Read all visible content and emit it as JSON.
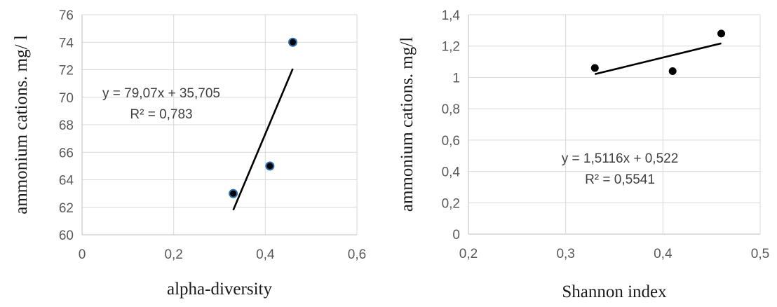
{
  "chart_data": [
    {
      "type": "scatter",
      "xlabel": "alpha-diversity",
      "ylabel": "ammonium cations. mg/ l",
      "xlim": [
        0,
        0.6
      ],
      "ylim": [
        60,
        76
      ],
      "x_ticks": [
        "0",
        "0,2",
        "0,4",
        "0,6"
      ],
      "y_ticks": [
        "60",
        "62",
        "64",
        "66",
        "68",
        "70",
        "72",
        "74",
        "76"
      ],
      "points": [
        {
          "x": 0.33,
          "y": 63
        },
        {
          "x": 0.41,
          "y": 65
        },
        {
          "x": 0.46,
          "y": 74
        }
      ],
      "trendline": {
        "x_start": 0.33,
        "x_end": 0.46,
        "slope": 79.07,
        "intercept": 35.705
      },
      "equation": "y = 79,07x + 35,705",
      "r_squared": "R² = 0,783",
      "point_color": "#000000",
      "grid": true
    },
    {
      "type": "scatter",
      "xlabel": "Shannon index",
      "ylabel": "ammonium cations. mg/l",
      "xlim": [
        0.2,
        0.5
      ],
      "ylim": [
        0,
        1.4
      ],
      "x_ticks": [
        "0,2",
        "0,3",
        "0,4",
        "0,5"
      ],
      "y_ticks": [
        "0",
        "0,2",
        "0,4",
        "0,6",
        "0,8",
        "1",
        "1,2",
        "1,4"
      ],
      "points": [
        {
          "x": 0.33,
          "y": 1.06
        },
        {
          "x": 0.41,
          "y": 1.04
        },
        {
          "x": 0.46,
          "y": 1.28
        }
      ],
      "trendline": {
        "x_start": 0.33,
        "x_end": 0.46,
        "slope": 1.5116,
        "intercept": 0.522
      },
      "equation": "y = 1,5116x + 0,522",
      "r_squared": "R² = 0,5541",
      "point_color": "#000000",
      "grid": true
    }
  ]
}
